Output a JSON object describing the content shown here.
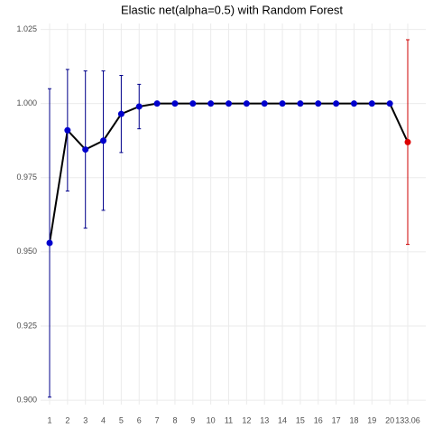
{
  "chart_data": {
    "type": "errorbar",
    "title": "Elastic net(alpha=0.5) with Random Forest",
    "categories": [
      "1",
      "2",
      "3",
      "4",
      "5",
      "6",
      "7",
      "8",
      "9",
      "10",
      "11",
      "12",
      "13",
      "14",
      "15",
      "16",
      "17",
      "18",
      "19",
      "20",
      "133.06"
    ],
    "values": [
      0.953,
      0.991,
      0.9845,
      0.9875,
      0.9965,
      0.999,
      1.0,
      1.0,
      1.0,
      1.0,
      1.0,
      1.0,
      1.0,
      1.0,
      1.0,
      1.0,
      1.0,
      1.0,
      1.0,
      1.0,
      0.987
    ],
    "errors": [
      0.052,
      0.0205,
      0.0265,
      0.0235,
      0.013,
      0.0075,
      0,
      0,
      0,
      0,
      0,
      0,
      0,
      0,
      0,
      0,
      0,
      0,
      0,
      0,
      0.0345
    ],
    "point_colors": [
      "#0000cd",
      "#0000cd",
      "#0000cd",
      "#0000cd",
      "#0000cd",
      "#0000cd",
      "#0000cd",
      "#0000cd",
      "#0000cd",
      "#0000cd",
      "#0000cd",
      "#0000cd",
      "#0000cd",
      "#0000cd",
      "#0000cd",
      "#0000cd",
      "#0000cd",
      "#0000cd",
      "#0000cd",
      "#0000cd",
      "#dd0000"
    ],
    "errorbar_colors": [
      "#00008b",
      "#00008b",
      "#00008b",
      "#00008b",
      "#00008b",
      "#00008b",
      "#00008b",
      "#00008b",
      "#00008b",
      "#00008b",
      "#00008b",
      "#00008b",
      "#00008b",
      "#00008b",
      "#00008b",
      "#00008b",
      "#00008b",
      "#00008b",
      "#00008b",
      "#00008b",
      "#cc0000"
    ],
    "line_color": "#000000",
    "ylim": [
      0.8985,
      1.027
    ],
    "yticks": [
      {
        "value": 0.9,
        "label": "0.900"
      },
      0.925,
      {
        "value": 0.95,
        "label": "0.950"
      },
      0.975,
      {
        "value": 1.0,
        "label": "1.000"
      },
      1.025
    ],
    "grid": true
  }
}
